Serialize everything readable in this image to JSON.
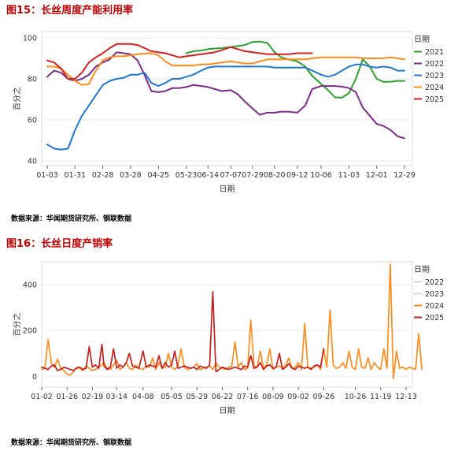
{
  "figures": [
    {
      "title": "图15：长丝周度产能利用率",
      "source": "数据来源：华闻期货研究所、钢联数据"
    },
    {
      "title": "图16：长丝日度产销率",
      "source": "数据来源：华闻期货研究所、钢联数据"
    }
  ],
  "chart_data": [
    {
      "type": "line",
      "title": "图15：长丝周度产能利用率",
      "xlabel": "日期",
      "ylabel": "百分之",
      "ylim": [
        40,
        100
      ],
      "yticks": [
        40,
        60,
        80,
        100
      ],
      "x_ticklabels": [
        "01-03",
        "01-31",
        "02-28",
        "03-28",
        "04-25",
        "05-23",
        "06-14",
        "07-07",
        "07-29",
        "08-20",
        "09-12",
        "10-06",
        "11-03",
        "12-01",
        "12-29"
      ],
      "grid": true,
      "legend_title": "日期",
      "legend_position": "right",
      "series": [
        {
          "name": "2021",
          "color": "#2ca02c",
          "x": [
            "05-23",
            "05-30",
            "06-07",
            "06-14",
            "06-21",
            "06-28",
            "07-07",
            "07-14",
            "07-21",
            "07-29",
            "08-05",
            "08-13",
            "08-20",
            "08-27",
            "09-03",
            "09-12",
            "09-20",
            "09-27",
            "10-06",
            "10-13",
            "10-20",
            "10-27",
            "11-03",
            "11-10",
            "11-17",
            "11-24",
            "12-01",
            "12-08",
            "12-15",
            "12-22",
            "12-29"
          ],
          "values": [
            92.5,
            93.5,
            93.8,
            94.5,
            94.8,
            95,
            95.5,
            96,
            96.5,
            98,
            98.2,
            97.5,
            93,
            90.5,
            89.5,
            88.5,
            86,
            81.5,
            77.5,
            74.5,
            71,
            70.8,
            73,
            80,
            89.5,
            86,
            80,
            78.5,
            78.6,
            79,
            79
          ]
        },
        {
          "name": "2022",
          "color": "#7b2c8a",
          "x": [
            "01-03",
            "01-10",
            "01-17",
            "01-24",
            "01-31",
            "02-07",
            "02-14",
            "02-21",
            "02-28",
            "03-07",
            "03-14",
            "03-21",
            "03-28",
            "04-04",
            "04-11",
            "04-18",
            "04-25",
            "05-02",
            "05-09",
            "05-16",
            "05-23",
            "05-30",
            "06-07",
            "06-14",
            "06-21",
            "06-28",
            "07-07",
            "07-14",
            "07-21",
            "07-29",
            "08-05",
            "08-13",
            "08-20",
            "08-27",
            "09-03",
            "09-12",
            "09-20",
            "09-27",
            "10-06",
            "10-13",
            "10-20",
            "10-27",
            "11-03",
            "11-10",
            "11-17",
            "11-24",
            "12-01",
            "12-08",
            "12-15",
            "12-22",
            "12-29"
          ],
          "values": [
            81,
            84,
            83,
            80,
            79,
            80,
            82,
            86,
            88,
            89.5,
            93,
            92.5,
            92,
            89,
            82,
            74,
            73.5,
            74,
            75.5,
            75.5,
            76,
            77,
            76.5,
            76,
            75,
            74,
            74.5,
            72.5,
            69,
            65.5,
            62.5,
            63.5,
            63.5,
            64,
            64,
            63.5,
            67,
            75,
            76.5,
            76.5,
            76.5,
            76.2,
            75.5,
            73.5,
            66,
            62,
            58,
            57,
            55,
            52,
            51
          ]
        },
        {
          "name": "2023",
          "color": "#1f77d4",
          "x": [
            "01-03",
            "01-10",
            "01-17",
            "01-24",
            "01-31",
            "02-07",
            "02-14",
            "02-21",
            "02-28",
            "03-07",
            "03-14",
            "03-21",
            "03-28",
            "04-04",
            "04-11",
            "04-18",
            "04-25",
            "05-02",
            "05-09",
            "05-16",
            "05-23",
            "05-30",
            "06-07",
            "06-14",
            "06-21",
            "06-28",
            "07-07",
            "07-14",
            "07-21",
            "07-29",
            "08-05",
            "08-13",
            "08-20",
            "08-27",
            "09-03",
            "09-12",
            "09-20",
            "09-27",
            "10-06",
            "10-13",
            "10-20",
            "10-27",
            "11-03",
            "11-10",
            "11-17",
            "11-24",
            "12-01",
            "12-08",
            "12-15",
            "12-22",
            "12-29"
          ],
          "values": [
            48,
            46,
            45.5,
            46,
            55,
            62,
            67,
            72,
            77,
            79,
            80,
            80.5,
            82,
            82,
            83,
            78,
            76.5,
            78,
            80,
            80,
            81,
            82,
            84,
            85.5,
            86,
            86,
            86,
            86,
            86,
            86,
            86,
            86,
            85.5,
            85.5,
            85.5,
            85.5,
            85.5,
            84,
            82,
            81,
            82,
            84,
            86,
            87,
            87,
            86,
            85.5,
            86,
            85.5,
            84,
            84
          ]
        },
        {
          "name": "2024",
          "color": "#ff8c1a",
          "x": [
            "01-03",
            "01-10",
            "01-17",
            "01-24",
            "01-31",
            "02-07",
            "02-14",
            "02-21",
            "02-28",
            "03-07",
            "03-14",
            "03-21",
            "03-28",
            "04-04",
            "04-11",
            "04-18",
            "04-25",
            "05-02",
            "05-09",
            "05-16",
            "05-23",
            "05-30",
            "06-07",
            "06-14",
            "06-21",
            "06-28",
            "07-07",
            "07-14",
            "07-21",
            "07-29",
            "08-05",
            "08-13",
            "08-20",
            "08-27",
            "09-03",
            "09-12",
            "09-20",
            "09-27",
            "10-06",
            "10-13",
            "10-20",
            "10-27",
            "11-03",
            "11-10",
            "11-17",
            "11-24",
            "12-01",
            "12-08",
            "12-15",
            "12-22",
            "12-29"
          ],
          "values": [
            86,
            86,
            85,
            82,
            79,
            77,
            77.5,
            84,
            89,
            90.5,
            91,
            91,
            91.5,
            92,
            92.3,
            92.5,
            91.5,
            88.5,
            86.5,
            86.5,
            86.5,
            86.5,
            87,
            87,
            87.5,
            88,
            88.5,
            88,
            87.5,
            87.5,
            88.5,
            89.5,
            89.5,
            89.5,
            89.5,
            89.5,
            89.5,
            90,
            90.5,
            90.5,
            90.5,
            90.5,
            90.5,
            90.5,
            90,
            90,
            90,
            90,
            90.5,
            90,
            89.5
          ]
        },
        {
          "name": "2025",
          "color": "#d62020",
          "x": [
            "01-03",
            "01-10",
            "01-17",
            "01-24",
            "01-31",
            "02-07",
            "02-14",
            "02-21",
            "02-28",
            "03-07",
            "03-14",
            "03-21",
            "03-28",
            "04-04",
            "04-11",
            "04-18",
            "04-25",
            "05-02",
            "05-09",
            "05-16",
            "05-23",
            "05-30",
            "06-07",
            "06-14",
            "06-21",
            "06-28",
            "07-07",
            "07-14",
            "07-21",
            "07-29",
            "08-05",
            "08-13",
            "08-20",
            "08-27",
            "09-03",
            "09-12",
            "09-20",
            "09-27"
          ],
          "values": [
            89,
            88,
            85,
            80,
            80,
            83,
            88,
            90.5,
            92.5,
            95,
            97,
            97,
            97,
            96.5,
            95,
            93.5,
            93,
            92.5,
            91.5,
            90.5,
            91,
            91.5,
            92,
            92.5,
            93,
            94,
            95.5,
            94.5,
            93.5,
            93,
            92.5,
            92,
            92,
            92,
            92,
            92.5,
            92.5,
            92.5
          ]
        }
      ]
    },
    {
      "type": "line",
      "title": "图16：长丝日度产销率",
      "xlabel": "日期",
      "ylabel": "百分之",
      "ylim": [
        -30,
        500
      ],
      "yticks": [
        0,
        200,
        400
      ],
      "x_ticklabels": [
        "01-02",
        "01-26",
        "02-19",
        "03-14",
        "04-08",
        "05-05",
        "05-29",
        "06-22",
        "07-16",
        "08-09",
        "09-02",
        "09-26",
        "10-26",
        "11-19",
        "12-13"
      ],
      "grid": true,
      "legend_title": "日期",
      "legend_position": "right",
      "series": [
        {
          "name": "2022",
          "color": "#d9d9d9",
          "values": []
        },
        {
          "name": "2023",
          "color": "#d9d9d9",
          "values": []
        },
        {
          "name": "2024",
          "color": "#ff8c1a",
          "x": [
            "01-02",
            "01-05",
            "01-08",
            "01-11",
            "01-14",
            "01-17",
            "01-20",
            "01-23",
            "01-26",
            "01-29",
            "02-01",
            "02-04",
            "02-07",
            "02-10",
            "02-13",
            "02-16",
            "02-19",
            "02-22",
            "02-25",
            "02-28",
            "03-02",
            "03-05",
            "03-08",
            "03-11",
            "03-14",
            "03-17",
            "03-20",
            "03-23",
            "03-26",
            "03-29",
            "04-01",
            "04-04",
            "04-08",
            "04-11",
            "04-14",
            "04-17",
            "04-20",
            "04-23",
            "04-26",
            "04-29",
            "05-02",
            "05-05",
            "05-08",
            "05-11",
            "05-14",
            "05-17",
            "05-20",
            "05-23",
            "05-26",
            "05-29",
            "06-01",
            "06-04",
            "06-07",
            "06-10",
            "06-13",
            "06-16",
            "06-19",
            "06-22",
            "06-25",
            "06-28",
            "07-01",
            "07-04",
            "07-07",
            "07-10",
            "07-13",
            "07-16",
            "07-19",
            "07-22",
            "07-25",
            "07-28",
            "07-31",
            "08-03",
            "08-06",
            "08-09",
            "08-12",
            "08-15",
            "08-18",
            "08-21",
            "08-24",
            "08-27",
            "08-30",
            "09-02",
            "09-05",
            "09-08",
            "09-11",
            "09-14",
            "09-17",
            "09-20",
            "09-23",
            "09-26",
            "09-29",
            "10-02",
            "10-05",
            "10-08",
            "10-11",
            "10-14",
            "10-17",
            "10-20",
            "10-23",
            "10-26",
            "10-29",
            "11-01",
            "11-04",
            "11-07",
            "11-10",
            "11-13",
            "11-16",
            "11-19",
            "11-22",
            "11-25",
            "11-28",
            "12-01",
            "12-04",
            "12-07",
            "12-10",
            "12-13",
            "12-16",
            "12-19",
            "12-22",
            "12-25",
            "12-28"
          ],
          "values": [
            30,
            35,
            160,
            60,
            40,
            75,
            35,
            25,
            10,
            5,
            20,
            40,
            35,
            25,
            45,
            35,
            25,
            30,
            40,
            50,
            60,
            35,
            30,
            50,
            70,
            30,
            40,
            60,
            35,
            30,
            50,
            35,
            30,
            45,
            40,
            80,
            30,
            60,
            35,
            40,
            100,
            40,
            30,
            45,
            120,
            40,
            30,
            35,
            40,
            55,
            30,
            35,
            40,
            45,
            30,
            60,
            40,
            35,
            30,
            40,
            45,
            150,
            40,
            60,
            30,
            35,
            245,
            45,
            40,
            110,
            35,
            50,
            120,
            30,
            40,
            45,
            35,
            50,
            80,
            35,
            40,
            60,
            30,
            230,
            40,
            35,
            40,
            50,
            30,
            120,
            40,
            290,
            50,
            35,
            40,
            60,
            35,
            110,
            40,
            30,
            120,
            40,
            35,
            80,
            30,
            60,
            40,
            30,
            120,
            35,
            490,
            -10,
            110,
            35,
            40,
            30,
            40,
            35,
            30,
            185,
            30
          ]
        },
        {
          "name": "2025",
          "color": "#c81e1e",
          "x": [
            "01-02",
            "01-05",
            "01-08",
            "01-11",
            "01-14",
            "01-17",
            "01-20",
            "01-23",
            "01-26",
            "01-29",
            "02-01",
            "02-04",
            "02-07",
            "02-10",
            "02-13",
            "02-16",
            "02-19",
            "02-22",
            "02-25",
            "02-28",
            "03-02",
            "03-05",
            "03-08",
            "03-11",
            "03-14",
            "03-17",
            "03-20",
            "03-23",
            "03-26",
            "03-29",
            "04-01",
            "04-04",
            "04-08",
            "04-11",
            "04-14",
            "04-17",
            "04-20",
            "04-23",
            "04-26",
            "04-29",
            "05-02",
            "05-05",
            "05-08",
            "05-11",
            "05-14",
            "05-17",
            "05-20",
            "05-23",
            "05-26",
            "05-29",
            "06-01",
            "06-04",
            "06-07",
            "06-10",
            "06-13",
            "06-16",
            "06-19",
            "06-22",
            "06-25",
            "06-28",
            "07-01",
            "07-04",
            "07-07",
            "07-10",
            "07-13",
            "07-16",
            "07-19",
            "07-22",
            "07-25",
            "07-28",
            "07-31",
            "08-03",
            "08-06",
            "08-09",
            "08-12",
            "08-15",
            "08-18",
            "08-21",
            "08-24",
            "08-27",
            "08-30",
            "09-02",
            "09-05",
            "09-08",
            "09-11",
            "09-14",
            "09-17",
            "09-20",
            "09-23",
            "09-26"
          ],
          "values": [
            40,
            35,
            30,
            45,
            50,
            25,
            30,
            40,
            35,
            30,
            25,
            35,
            40,
            30,
            35,
            130,
            40,
            50,
            35,
            140,
            45,
            30,
            40,
            120,
            35,
            50,
            40,
            60,
            100,
            45,
            40,
            35,
            110,
            40,
            50,
            45,
            40,
            90,
            35,
            60,
            40,
            50,
            110,
            35,
            40,
            45,
            40,
            35,
            40,
            30,
            45,
            40,
            35,
            50,
            370,
            20,
            30,
            40,
            35,
            30,
            35,
            40,
            35,
            30,
            45,
            40,
            90,
            35,
            40,
            60,
            30,
            45,
            50,
            35,
            40,
            100,
            30,
            40,
            55,
            35,
            30,
            45,
            40,
            35,
            40,
            30,
            45,
            50,
            40,
            120
          ]
        }
      ]
    }
  ]
}
